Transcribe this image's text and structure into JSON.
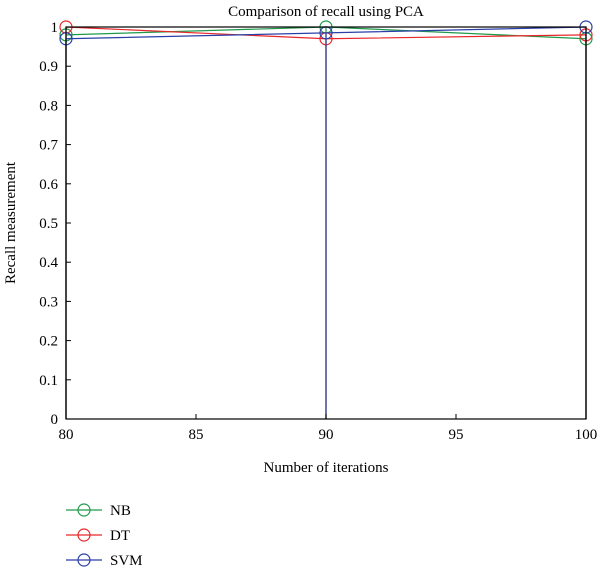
{
  "chart_data": {
    "type": "line",
    "title": "Comparison of recall using PCA",
    "xlabel": "Number of iterations",
    "ylabel": "Recall measurement",
    "xlim": [
      80,
      100
    ],
    "ylim": [
      0,
      1
    ],
    "xticks": [
      "80",
      "85",
      "90",
      "95",
      "100"
    ],
    "yticks": [
      "0",
      "0.1",
      "0.2",
      "0.3",
      "0.4",
      "0.5",
      "0.6",
      "0.7",
      "0.8",
      "0.9",
      "1"
    ],
    "grid": false,
    "legend_position": "bottom-left",
    "x": [
      80,
      90,
      100
    ],
    "series": [
      {
        "name": "NB",
        "values": [
          0.98,
          1.0,
          0.97
        ],
        "color": "#1f9a4a",
        "marker": "circle-open"
      },
      {
        "name": "DT",
        "values": [
          1.0,
          0.97,
          0.98
        ],
        "color": "#e8282a",
        "marker": "circle-open"
      },
      {
        "name": "SVM",
        "values": [
          0.97,
          0.985,
          1.0
        ],
        "color": "#2b3fa8",
        "marker": "circle-open"
      }
    ]
  }
}
